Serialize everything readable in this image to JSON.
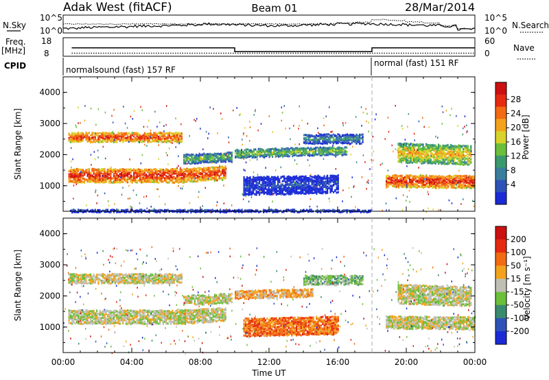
{
  "header": {
    "station": "Adak West (fitACF)",
    "beam": "Beam 01",
    "date": "28/Mar/2014"
  },
  "panels": {
    "nsky": {
      "label": "N.Sky",
      "yticks": [
        "10^5",
        "10^0"
      ],
      "right_label": "N.Search",
      "right_yticks": [
        "10^5",
        "10^0"
      ],
      "sky_level": [
        0.25,
        0.3,
        0.32,
        0.35,
        0.38,
        0.4,
        0.42,
        0.45,
        0.5,
        0.48,
        0.45,
        0.42,
        0.4,
        0.42,
        0.45,
        0.48,
        0.5,
        0.52,
        0.5,
        0.48,
        0.45,
        0.42,
        0.38,
        0.2
      ],
      "search_level": [
        0.5,
        0.5,
        0.5,
        0.5,
        0.5,
        0.5,
        0.5,
        0.5,
        0.5,
        0.5,
        0.5,
        0.5,
        0.5,
        0.5,
        0.5,
        0.5,
        0.55,
        0.6,
        0.75,
        0.7,
        0.62,
        0.55,
        0.4,
        0.25
      ]
    },
    "freq": {
      "label": "Freq.",
      "unit": "[MHz]",
      "yticks": [
        "18",
        "8"
      ],
      "right_label": "Nave",
      "right_yticks": [
        "60",
        "0"
      ],
      "segments": [
        {
          "start": 0.5,
          "end": 10.0,
          "freq_mhz": 12.5
        },
        {
          "start": 10.0,
          "end": 18.0,
          "freq_mhz": 10.5
        },
        {
          "start": 18.0,
          "end": 24.0,
          "freq_mhz": 12.5
        }
      ],
      "nave": 10
    },
    "cpid": {
      "label": "CPID",
      "modes": [
        {
          "text": "normalsound (fast) 157 RF",
          "start": 0.0,
          "end": 18.0
        },
        {
          "text": "normal (fast) 151 RF",
          "start": 18.0,
          "end": 24.0
        }
      ]
    }
  },
  "chart_data": [
    {
      "type": "heatmap",
      "title": "",
      "variable": "power",
      "xlabel": "Time UT",
      "ylabel": "Slant Range [km]",
      "xticks": [
        "00:00",
        "04:00",
        "08:00",
        "12:00",
        "16:00",
        "20:00",
        "00:00"
      ],
      "xlim_hours": [
        0,
        24
      ],
      "ylim_km": [
        180,
        4500
      ],
      "yticks": [
        1000,
        2000,
        3000,
        4000
      ],
      "colorbar": {
        "label": "Power [dB]",
        "ticks": [
          "4",
          "8",
          "12",
          "16",
          "20",
          "24",
          "28"
        ],
        "colors": [
          "#1a2bd6",
          "#2e53b8",
          "#3a7e9e",
          "#3a9a6e",
          "#6cbf3a",
          "#d8d22a",
          "#f2a21c",
          "#f26a12",
          "#e62a10",
          "#cc1010"
        ]
      },
      "echo_bands": [
        {
          "t0": 0.3,
          "t1": 6.9,
          "r0": 1150,
          "r1": 1600,
          "level": 8.5,
          "slope": 0
        },
        {
          "t0": 6.9,
          "t1": 9.5,
          "r0": 1150,
          "r1": 1600,
          "level": 8,
          "slope": 0.35
        },
        {
          "t0": 0.3,
          "t1": 6.9,
          "r0": 2450,
          "r1": 2750,
          "level": 8,
          "slope": 0
        },
        {
          "t0": 7.0,
          "t1": 9.8,
          "r0": 1750,
          "r1": 2050,
          "level": 4,
          "slope": 0.25
        },
        {
          "t0": 10.0,
          "t1": 16.5,
          "r0": 1950,
          "r1": 2200,
          "level": 4.5,
          "slope": 0.15
        },
        {
          "t0": 10.5,
          "t1": 16.0,
          "r0": 750,
          "r1": 1300,
          "level": 1,
          "slope": 0.12
        },
        {
          "t0": 14.0,
          "t1": 17.5,
          "r0": 2400,
          "r1": 2700,
          "level": 3,
          "slope": 0
        },
        {
          "t0": 18.8,
          "t1": 24.0,
          "r0": 1000,
          "r1": 1400,
          "level": 8.5,
          "slope": -0.05
        },
        {
          "t0": 19.5,
          "t1": 23.8,
          "r0": 1800,
          "r1": 2400,
          "level": 6,
          "slope": -0.2
        },
        {
          "t0": 0.3,
          "t1": 18.0,
          "r0": 200,
          "r1": 260,
          "level": 2,
          "slope": 0
        }
      ]
    },
    {
      "type": "heatmap",
      "title": "",
      "variable": "velocity",
      "xlabel": "Time UT",
      "ylabel": "Slant Range [km]",
      "xticks": [
        "00:00",
        "04:00",
        "08:00",
        "12:00",
        "16:00",
        "20:00",
        "00:00"
      ],
      "xlim_hours": [
        0,
        24
      ],
      "ylim_km": [
        180,
        4500
      ],
      "yticks": [
        1000,
        2000,
        3000,
        4000
      ],
      "colorbar": {
        "label": "Velocity [m s⁻¹]",
        "ticks": [
          "200",
          "100",
          "50",
          "15",
          "-15",
          "-50",
          "-100",
          "-200"
        ],
        "colors": [
          "#1a2bd6",
          "#2e53b8",
          "#3a8a6e",
          "#6cbf3a",
          "#bfbfb5",
          "#f2a21c",
          "#f26a12",
          "#e62a10",
          "#cc1010"
        ]
      },
      "echo_bands": [
        {
          "t0": 0.3,
          "t1": 6.9,
          "r0": 1150,
          "r1": 1600,
          "level": 4,
          "slope": 0
        },
        {
          "t0": 6.9,
          "t1": 9.5,
          "r0": 1150,
          "r1": 1600,
          "level": 4,
          "slope": 0.35
        },
        {
          "t0": 0.3,
          "t1": 6.9,
          "r0": 2450,
          "r1": 2750,
          "level": 4,
          "slope": 0
        },
        {
          "t0": 7.0,
          "t1": 9.8,
          "r0": 1750,
          "r1": 2050,
          "level": 4,
          "slope": 0.25
        },
        {
          "t0": 10.0,
          "t1": 14.5,
          "r0": 1950,
          "r1": 2200,
          "level": 5,
          "slope": 0.15
        },
        {
          "t0": 10.5,
          "t1": 16.0,
          "r0": 750,
          "r1": 1300,
          "level": 6,
          "slope": 0.12
        },
        {
          "t0": 14.0,
          "t1": 17.5,
          "r0": 2400,
          "r1": 2700,
          "level": 3,
          "slope": 0
        },
        {
          "t0": 18.8,
          "t1": 24.0,
          "r0": 1000,
          "r1": 1400,
          "level": 4,
          "slope": -0.05
        },
        {
          "t0": 19.5,
          "t1": 23.8,
          "r0": 1800,
          "r1": 2400,
          "level": 4,
          "slope": -0.2
        }
      ]
    }
  ]
}
